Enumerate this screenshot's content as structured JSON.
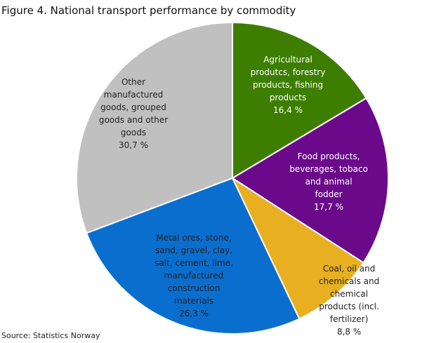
{
  "chart_data": {
    "type": "pie",
    "title": "Figure 4. National transport performance  by commodity",
    "source": "Source: Statistics Norway",
    "slices": [
      {
        "label_lines": [
          "Agricultural",
          "produtcs, forestry",
          "products, fishing",
          "products"
        ],
        "value": 16.4,
        "value_text": "16,4  %",
        "color": "#3d7e00",
        "text_color": "light"
      },
      {
        "label_lines": [
          "Food products,",
          "beverages,  tobaco",
          "and animal",
          "fodder"
        ],
        "value": 17.7,
        "value_text": "17,7  %",
        "color": "#6a0a8a",
        "text_color": "light"
      },
      {
        "label_lines": [
          "Coal, oil and",
          "chemicals  and",
          "chemical",
          "products (incl.",
          "fertilizer)"
        ],
        "value": 8.8,
        "value_text": "8,8  %",
        "color": "#e8b020",
        "text_color": "dark"
      },
      {
        "label_lines": [
          "Metal ores,  stone,",
          "sand, gravel, clay,",
          "salt, cement, lime,",
          "manufactured",
          "construction",
          "materials"
        ],
        "value": 26.3,
        "value_text": "26,3  %",
        "color": "#0a6ecf",
        "text_color": "dark"
      },
      {
        "label_lines": [
          "Other",
          "manufactured",
          "goods, grouped",
          "goods and other",
          "goods"
        ],
        "value": 30.7,
        "value_text": "30,7  %",
        "color": "#c0c0c0",
        "text_color": "dark"
      }
    ]
  }
}
